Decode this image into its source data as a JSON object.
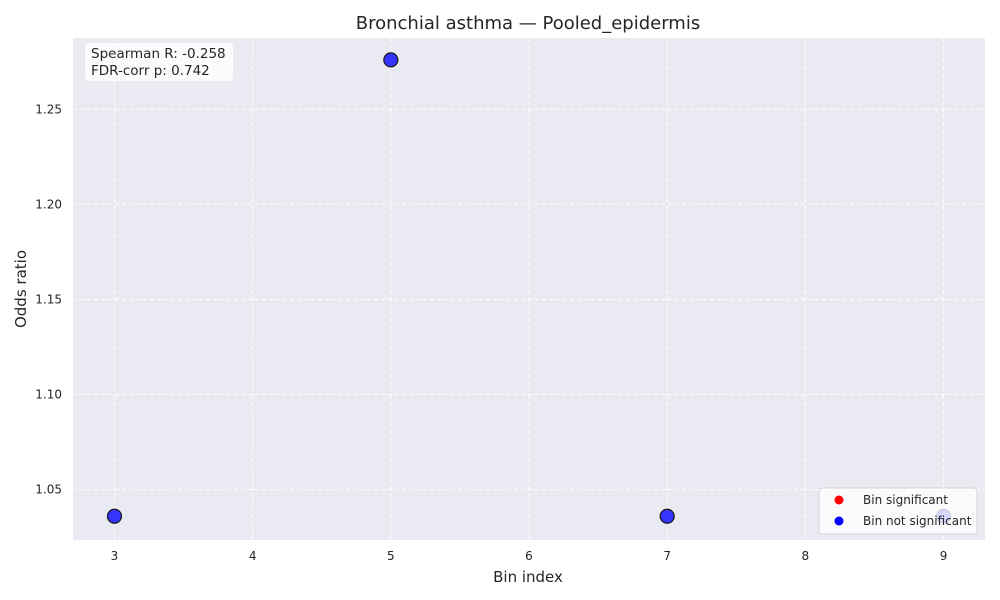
{
  "chart_data": {
    "type": "scatter",
    "title": "Bronchial asthma — Pooled_epidermis",
    "xlabel": "Bin index",
    "ylabel": "Odds ratio",
    "xlim": [
      2.7,
      9.3
    ],
    "ylim": [
      1.0235,
      1.2875
    ],
    "xticks": [
      3,
      4,
      5,
      6,
      7,
      8,
      9
    ],
    "yticks": [
      1.05,
      1.1,
      1.15,
      1.2,
      1.25
    ],
    "ytick_labels": [
      "1.05",
      "1.10",
      "1.15",
      "1.20",
      "1.25"
    ],
    "grid": true,
    "background": "#eaeaf2",
    "series": [
      {
        "name": "Bin significant",
        "color": "#ff0000",
        "points": []
      },
      {
        "name": "Bin not significant",
        "color": "#0000ff",
        "points": [
          {
            "x": 3,
            "y": 1.036
          },
          {
            "x": 5,
            "y": 1.276
          },
          {
            "x": 7,
            "y": 1.036
          },
          {
            "x": 9,
            "y": 1.036
          }
        ]
      }
    ],
    "annotation": {
      "lines": [
        "Spearman R: -0.258",
        "FDR-corr p: 0.742"
      ]
    },
    "legend_position": "lower-right"
  }
}
